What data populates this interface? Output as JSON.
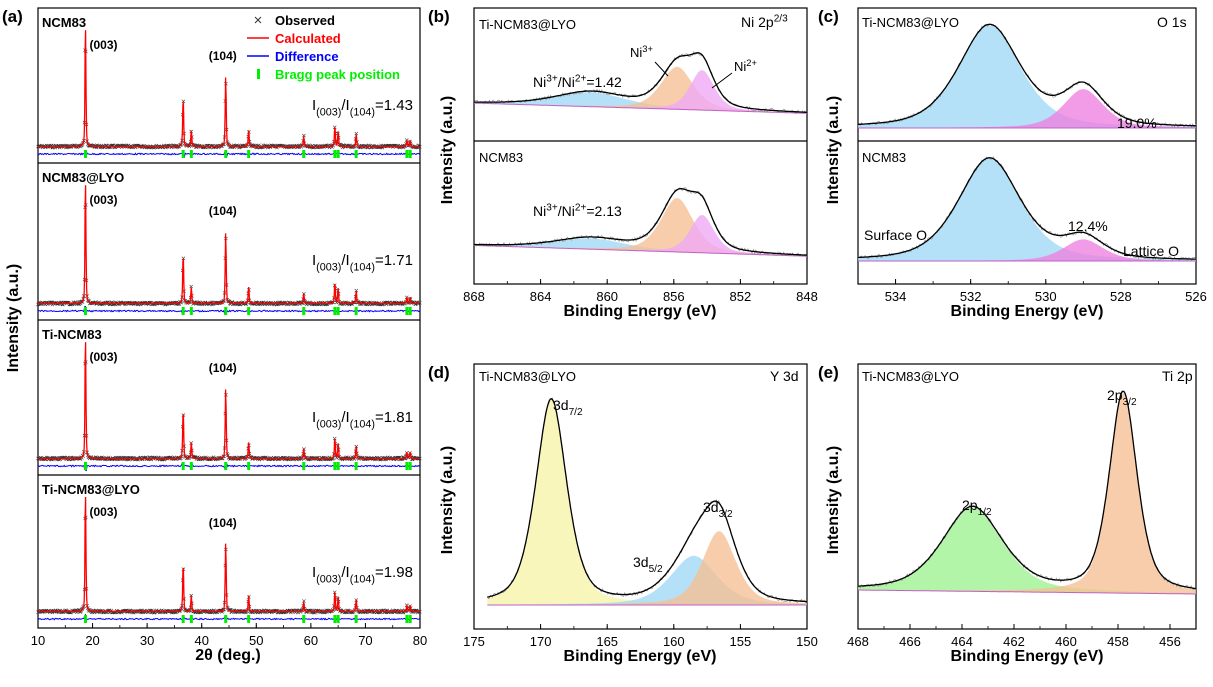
{
  "colors": {
    "observed": "#333333",
    "calculated": "#ff0000",
    "difference": "#0000ff",
    "bragg": "#00ee00",
    "fit": "#000000",
    "blue": "#9fd8f5",
    "orange": "#f6bf94",
    "pink": "#ee7fe0",
    "violet": "#eea8f6",
    "yellow": "#f6f3a6",
    "green": "#9df28f",
    "ylw2": "#e9e388"
  },
  "panel_labels": {
    "a": "(a)",
    "b": "(b)",
    "c": "(c)",
    "d": "(d)",
    "e": "(e)"
  },
  "chart_data": [
    {
      "id": "a",
      "type": "line",
      "xlabel": "2θ (deg.)",
      "ylabel": "Intensity (a.u.)",
      "xlim": [
        10,
        80
      ],
      "xticks": [
        "10",
        "20",
        "30",
        "40",
        "50",
        "60",
        "70",
        "80"
      ],
      "legend": [
        "Observed",
        "Calculated",
        "Difference",
        "Bragg peak position"
      ],
      "peaks": [
        {
          "x": 18.7,
          "h": 1.0
        },
        {
          "x": 36.6,
          "h": 0.4
        },
        {
          "x": 38.1,
          "h": 0.13
        },
        {
          "x": 44.4,
          "h": 0.57
        },
        {
          "x": 48.6,
          "h": 0.13
        },
        {
          "x": 58.7,
          "h": 0.08
        },
        {
          "x": 64.4,
          "h": 0.17
        },
        {
          "x": 65.0,
          "h": 0.12
        },
        {
          "x": 68.3,
          "h": 0.1
        },
        {
          "x": 77.6,
          "h": 0.05
        },
        {
          "x": 78.2,
          "h": 0.05
        }
      ],
      "subplots": [
        {
          "name": "NCM83",
          "ratio_prefix": "I",
          "ratio_sub1": "(003)",
          "ratio_mid": "/I",
          "ratio_sub2": "(104)",
          "ratio_value": "=1.43",
          "peak1": "(003)",
          "peak2": "(104)"
        },
        {
          "name": "NCM83@LYO",
          "ratio_prefix": "I",
          "ratio_sub1": "(003)",
          "ratio_mid": "/I",
          "ratio_sub2": "(104)",
          "ratio_value": "=1.71",
          "peak1": "(003)",
          "peak2": "(104)"
        },
        {
          "name": "Ti-NCM83",
          "ratio_prefix": "I",
          "ratio_sub1": "(003)",
          "ratio_mid": "/I",
          "ratio_sub2": "(104)",
          "ratio_value": "=1.81",
          "peak1": "(003)",
          "peak2": "(104)"
        },
        {
          "name": "Ti-NCM83@LYO",
          "ratio_prefix": "I",
          "ratio_sub1": "(003)",
          "ratio_mid": "/I",
          "ratio_sub2": "(104)",
          "ratio_value": "=1.98",
          "peak1": "(003)",
          "peak2": "(104)"
        }
      ]
    },
    {
      "id": "b",
      "type": "area",
      "title": "Ni 2p",
      "title_sup": "2/3",
      "xlabel": "Binding Energy (eV)",
      "ylabel": "Intensity (a.u.)",
      "xlim": [
        868,
        848
      ],
      "xticks": [
        "868",
        "864",
        "860",
        "856",
        "852",
        "848"
      ],
      "annotations": {
        "ni3": "Ni",
        "ni3_sup": "3+",
        "ni2": "Ni",
        "ni2_sup": "2+"
      },
      "subplots": [
        {
          "name": "Ti-NCM83@LYO",
          "ratio_text": "Ni3+/Ni2+=1.42",
          "r1": "Ni",
          "r1s": "3+",
          "r2": "/Ni",
          "r2s": "2+",
          "r3": "=1.42",
          "components": [
            {
              "color": "blue",
              "center": 861.0,
              "amp": 0.17,
              "width": 2.2
            },
            {
              "color": "orange",
              "center": 855.8,
              "amp": 0.5,
              "width": 1.0
            },
            {
              "color": "violet",
              "center": 854.3,
              "amp": 0.47,
              "width": 0.75
            }
          ]
        },
        {
          "name": "NCM83",
          "ratio_text": "Ni3+/Ni2+=2.13",
          "r1": "Ni",
          "r1s": "3+",
          "r2": "/Ni",
          "r2s": "2+",
          "r3": "=2.13",
          "components": [
            {
              "color": "blue",
              "center": 861.0,
              "amp": 0.12,
              "width": 2.2
            },
            {
              "color": "orange",
              "center": 855.8,
              "amp": 0.6,
              "width": 1.0
            },
            {
              "color": "violet",
              "center": 854.3,
              "amp": 0.42,
              "width": 0.75
            }
          ]
        }
      ]
    },
    {
      "id": "c",
      "type": "area",
      "title": "O 1s",
      "xlabel": "Binding Energy (eV)",
      "ylabel": "Intensity (a.u.)",
      "xlim": [
        535,
        526
      ],
      "xticks": [
        "534",
        "532",
        "530",
        "528",
        "526"
      ],
      "subplots": [
        {
          "name": "Ti-NCM83@LYO",
          "percent": "19.0%",
          "components": [
            {
              "color": "blue",
              "center": 531.5,
              "amp": 0.95,
              "width": 0.85
            },
            {
              "color": "pink",
              "center": 529.0,
              "amp": 0.36,
              "width": 0.55
            }
          ]
        },
        {
          "name": "NCM83",
          "percent": "12.4%",
          "left_label": "Surface O",
          "right_label": "Lattice O",
          "components": [
            {
              "color": "blue",
              "center": 531.5,
              "amp": 0.95,
              "width": 0.85
            },
            {
              "color": "pink",
              "center": 529.0,
              "amp": 0.2,
              "width": 0.55
            }
          ]
        }
      ]
    },
    {
      "id": "d",
      "type": "area",
      "title": "Y 3d",
      "sample": "Ti-NCM83@LYO",
      "xlabel": "Binding Energy (eV)",
      "ylabel": "Intensity (a.u.)",
      "xlim": [
        175,
        150
      ],
      "xticks": [
        "175",
        "170",
        "165",
        "160",
        "155",
        "150"
      ],
      "labels": {
        "a": "3d",
        "a_sub": "7/2",
        "b": "3d",
        "b_sub": "3/2",
        "c": "3d",
        "c_sub": "5/2"
      },
      "components": [
        {
          "color": "yellow",
          "center": 169.2,
          "amp": 1.0,
          "width": 1.2
        },
        {
          "color": "blue",
          "center": 158.5,
          "amp": 0.24,
          "width": 1.8
        },
        {
          "color": "orange",
          "center": 156.6,
          "amp": 0.36,
          "width": 1.3
        }
      ]
    },
    {
      "id": "e",
      "type": "area",
      "title": "Ti 2p",
      "sample": "Ti-NCM83@LYO",
      "xlabel": "Binding Energy (eV)",
      "ylabel": "Intensity (a.u.)",
      "xlim": [
        468,
        455
      ],
      "xticks": [
        "468",
        "466",
        "464",
        "462",
        "460",
        "458",
        "456"
      ],
      "labels": {
        "a": "2p",
        "a_sub": "3/2",
        "b": "2p",
        "b_sub": "1/2"
      },
      "components": [
        {
          "color": "green",
          "center": 463.6,
          "amp": 0.42,
          "width": 1.2
        },
        {
          "color": "orange",
          "center": 457.8,
          "amp": 1.0,
          "width": 0.55
        }
      ]
    }
  ]
}
